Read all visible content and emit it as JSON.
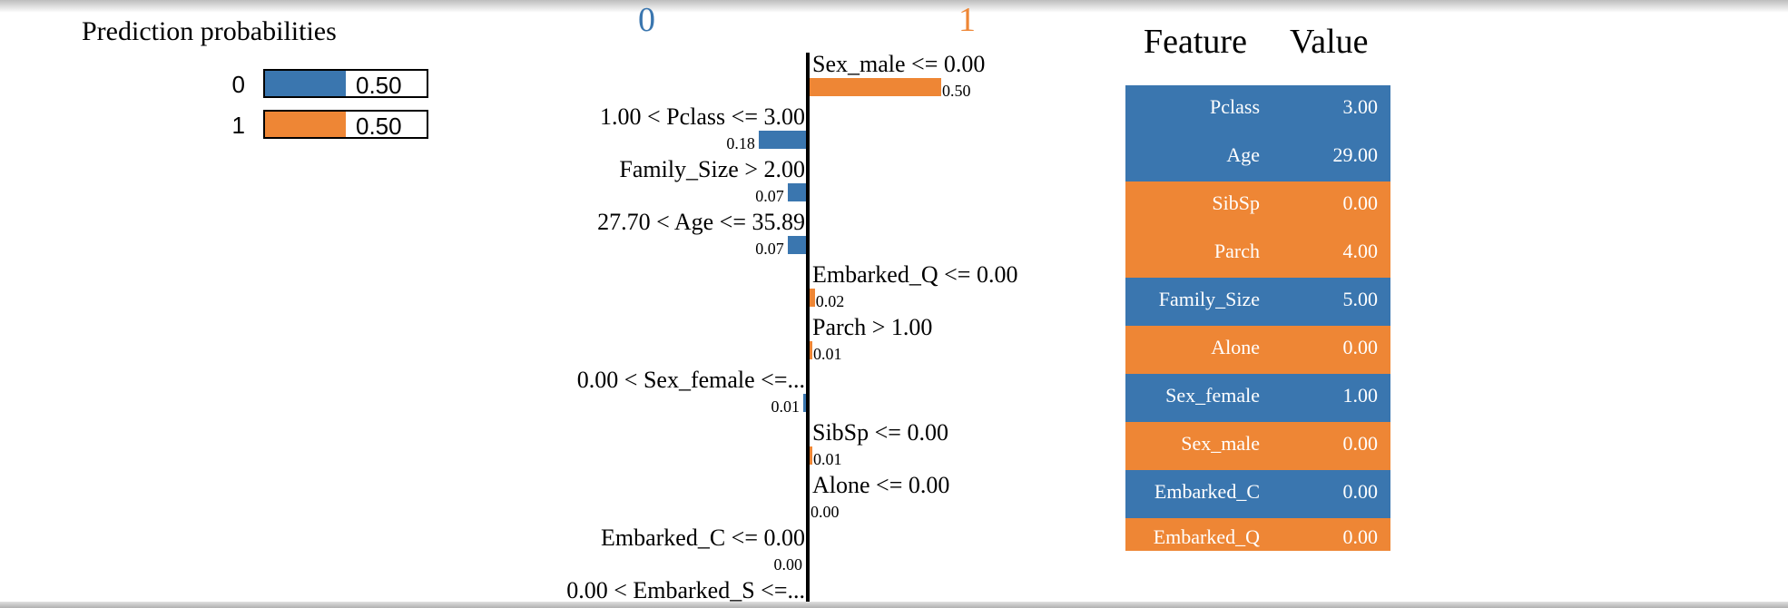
{
  "colors": {
    "class0": "#3a76af",
    "class1": "#ee8635"
  },
  "prediction_probabilities": {
    "title": "Prediction probabilities",
    "rows": [
      {
        "label": "0",
        "value_text": "0.50",
        "value": 0.5,
        "color": "#3a76af"
      },
      {
        "label": "1",
        "value_text": "0.50",
        "value": 0.5,
        "color": "#ee8635"
      }
    ]
  },
  "chart_data": {
    "type": "bar",
    "orientation": "horizontal",
    "class_labels": {
      "negative": "0",
      "positive": "1"
    },
    "features": [
      {
        "label": "Sex_male <= 0.00",
        "value": 0.5,
        "value_text": "0.50",
        "class": "1"
      },
      {
        "label": "1.00 < Pclass <= 3.00",
        "value": 0.18,
        "value_text": "0.18",
        "class": "0"
      },
      {
        "label": "Family_Size > 2.00",
        "value": 0.07,
        "value_text": "0.07",
        "class": "0"
      },
      {
        "label": "27.70 < Age <= 35.89",
        "value": 0.07,
        "value_text": "0.07",
        "class": "0"
      },
      {
        "label": "Embarked_Q <= 0.00",
        "value": 0.02,
        "value_text": "0.02",
        "class": "1"
      },
      {
        "label": "Parch > 1.00",
        "value": 0.01,
        "value_text": "0.01",
        "class": "1"
      },
      {
        "label": "0.00 < Sex_female <=...",
        "value": 0.01,
        "value_text": "0.01",
        "class": "0"
      },
      {
        "label": "SibSp <= 0.00",
        "value": 0.01,
        "value_text": "0.01",
        "class": "1"
      },
      {
        "label": "Alone <= 0.00",
        "value": 0.0,
        "value_text": "0.00",
        "class": "1"
      },
      {
        "label": "Embarked_C <= 0.00",
        "value": 0.0,
        "value_text": "0.00",
        "class": "0"
      },
      {
        "label": "0.00 < Embarked_S <=...",
        "value": 0.0,
        "value_text": "",
        "class": "0"
      }
    ]
  },
  "feature_table": {
    "headers": {
      "feature": "Feature",
      "value": "Value"
    },
    "rows": [
      {
        "feature": "Pclass",
        "value": "3.00",
        "class": "0"
      },
      {
        "feature": "Age",
        "value": "29.00",
        "class": "0"
      },
      {
        "feature": "SibSp",
        "value": "0.00",
        "class": "1"
      },
      {
        "feature": "Parch",
        "value": "4.00",
        "class": "1"
      },
      {
        "feature": "Family_Size",
        "value": "5.00",
        "class": "0"
      },
      {
        "feature": "Alone",
        "value": "0.00",
        "class": "1"
      },
      {
        "feature": "Sex_female",
        "value": "1.00",
        "class": "0"
      },
      {
        "feature": "Sex_male",
        "value": "0.00",
        "class": "1"
      },
      {
        "feature": "Embarked_C",
        "value": "0.00",
        "class": "0"
      },
      {
        "feature": "Embarked_Q",
        "value": "0.00",
        "class": "1"
      }
    ]
  }
}
